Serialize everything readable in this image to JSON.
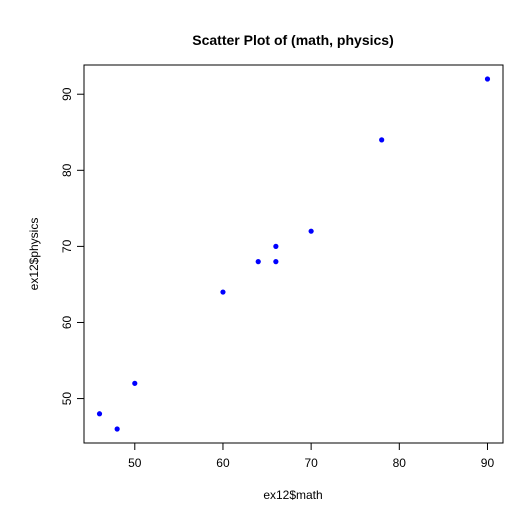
{
  "chart_data": {
    "type": "scatter",
    "title": "Scatter Plot of (math, physics)",
    "xlabel": "ex12$math",
    "ylabel": "ex12$physics",
    "xlim": [
      44.24,
      91.76
    ],
    "ylim": [
      44.16,
      93.84
    ],
    "x_ticks": [
      50,
      60,
      70,
      80,
      90
    ],
    "y_ticks": [
      50,
      60,
      70,
      80,
      90
    ],
    "grid": false,
    "legend": "none",
    "point_color": "#0000ff",
    "series": [
      {
        "x": [
          46,
          48,
          50,
          60,
          64,
          66,
          66,
          70,
          78,
          90
        ],
        "y": [
          48,
          46,
          52,
          64,
          68,
          70,
          68,
          72,
          84,
          92
        ]
      }
    ]
  }
}
